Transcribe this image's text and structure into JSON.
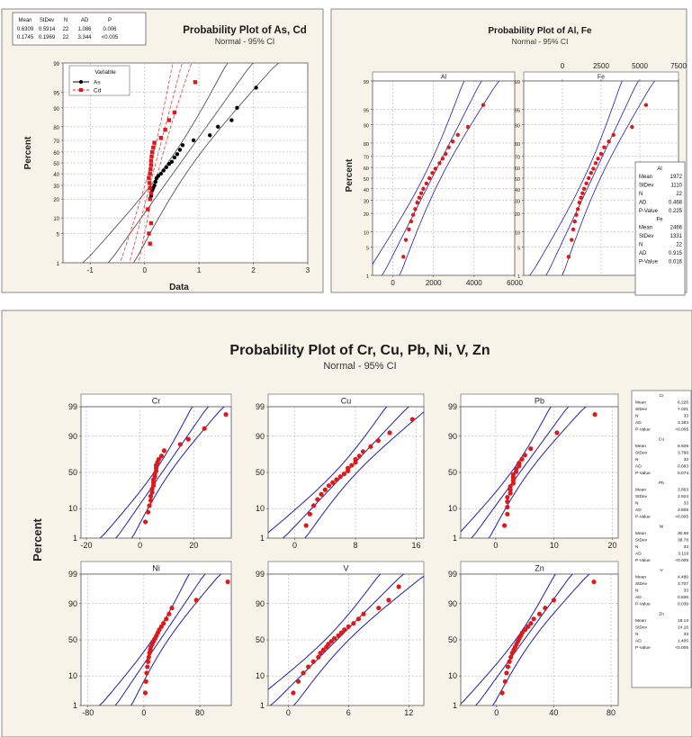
{
  "figure1": {
    "title": "Probability Plot of As, Cd",
    "subtitle": "Normal - 95% CI",
    "xlabel": "Data",
    "ylabel": "Percent",
    "legend_title": "Variable",
    "stats_header": [
      "Mean",
      "StDev",
      "N",
      "AD",
      "P"
    ],
    "stats_rows": [
      [
        "0.6309",
        "0.5914",
        "22",
        "1.086",
        "0.006"
      ],
      [
        "0.1745",
        "0.1969",
        "22",
        "3.344",
        "<0.005"
      ]
    ],
    "x_ticks": [
      "-1",
      "0",
      "1",
      "2",
      "3"
    ],
    "y_ticks": [
      "1",
      "5",
      "10",
      "20",
      "30",
      "40",
      "50",
      "60",
      "70",
      "80",
      "90",
      "95",
      "99"
    ]
  },
  "figure2": {
    "title": "Probability Plot of Al, Fe",
    "subtitle": "Normal - 95% CI",
    "ylabel": "Percent",
    "panel_labels": [
      "Al",
      "Fe"
    ],
    "bottom_ticks": [
      "0",
      "2000",
      "4000",
      "6000"
    ],
    "top_ticks": [
      "0",
      "2500",
      "5000",
      "7500"
    ],
    "y_ticks": [
      "1",
      "5",
      "10",
      "20",
      "30",
      "40",
      "50",
      "60",
      "70",
      "80",
      "90",
      "95",
      "99"
    ],
    "stats": [
      {
        "name": "Al",
        "rows": [
          [
            "Mean",
            "1972"
          ],
          [
            "StDev",
            "1110"
          ],
          [
            "N",
            "22"
          ],
          [
            "AD",
            "0.468"
          ],
          [
            "P-Value",
            "0.225"
          ]
        ]
      },
      {
        "name": "Fe",
        "rows": [
          [
            "Mean",
            "2466"
          ],
          [
            "StDev",
            "1331"
          ],
          [
            "N",
            "22"
          ],
          [
            "AD",
            "0.915"
          ],
          [
            "P-Value",
            "0.016"
          ]
        ]
      }
    ]
  },
  "figure3": {
    "title": "Probability Plot of Cr, Cu, Pb, Ni, V, Zn",
    "subtitle": "Normal - 95% CI",
    "ylabel": "Percent",
    "y_ticks": [
      "1",
      "10",
      "50",
      "90",
      "99"
    ],
    "panels": [
      {
        "name": "Cr",
        "ticks": [
          "-20",
          "0",
          "20"
        ]
      },
      {
        "name": "Cu",
        "ticks": [
          "0",
          "8",
          "16"
        ]
      },
      {
        "name": "Pb",
        "ticks": [
          "0",
          "10",
          "20"
        ]
      },
      {
        "name": "Ni",
        "ticks": [
          "-80",
          "0",
          "80"
        ]
      },
      {
        "name": "V",
        "ticks": [
          "0",
          "6",
          "12"
        ]
      },
      {
        "name": "Zn",
        "ticks": [
          "0",
          "40",
          "80"
        ]
      }
    ],
    "stats": [
      {
        "name": "Cr",
        "rows": [
          [
            "Mean",
            "6.226"
          ],
          [
            "StDev",
            "7.021"
          ],
          [
            "N",
            "33"
          ],
          [
            "AD",
            "3.383"
          ],
          [
            "P-Value",
            "<0.005"
          ]
        ]
      },
      {
        "name": "Cu",
        "rows": [
          [
            "Mean",
            "6.929"
          ],
          [
            "StDev",
            "3.786"
          ],
          [
            "N",
            "33"
          ],
          [
            "AD",
            "0.683"
          ],
          [
            "P-Value",
            "0.074"
          ]
        ]
      },
      {
        "name": "Pb",
        "rows": [
          [
            "Mean",
            "3.863"
          ],
          [
            "StDev",
            "2.924"
          ],
          [
            "N",
            "33"
          ],
          [
            "AD",
            "3.808"
          ],
          [
            "P-Value",
            "<0.005"
          ]
        ]
      },
      {
        "name": "Ni",
        "rows": [
          [
            "Mean",
            "30.98"
          ],
          [
            "StDev",
            "38.78"
          ],
          [
            "N",
            "33"
          ],
          [
            "AD",
            "3.119"
          ],
          [
            "P-Value",
            "<0.005"
          ]
        ]
      },
      {
        "name": "V",
        "rows": [
          [
            "Mean",
            "4.480"
          ],
          [
            "StDev",
            "3.707"
          ],
          [
            "N",
            "33"
          ],
          [
            "AD",
            "0.836"
          ],
          [
            "P-Value",
            "0.039"
          ]
        ]
      },
      {
        "name": "Zn",
        "rows": [
          [
            "Mean",
            "18.13"
          ],
          [
            "StDev",
            "14.16"
          ],
          [
            "N",
            "33"
          ],
          [
            "AD",
            "1.405"
          ],
          [
            "P-Value",
            "<0.005"
          ]
        ]
      }
    ]
  },
  "colors": {
    "background": "#f8f3e9",
    "plot_bg": "#ffffff",
    "series_black": "#000000",
    "series_red": "#e01818",
    "ci_line_blue": "#1f1fb0",
    "ci_line_gray": "#555555",
    "ci_line_red_dashed": "#e04040",
    "grid": "#a0a0a0"
  },
  "chart_data": [
    {
      "type": "scatter",
      "title": "Probability Plot of As, Cd",
      "subtitle": "Normal - 95% CI",
      "xlabel": "Data",
      "ylabel": "Percent",
      "xlim": [
        -1.5,
        3
      ],
      "y_scale": "normal-probability",
      "ylim": [
        1,
        99
      ],
      "grid": true,
      "legend": "top-left",
      "series": [
        {
          "name": "As",
          "color": "#000000",
          "marker": "circle",
          "x": [
            0.12,
            0.14,
            0.16,
            0.18,
            0.2,
            0.22,
            0.25,
            0.3,
            0.35,
            0.4,
            0.45,
            0.5,
            0.55,
            0.6,
            0.65,
            0.7,
            0.9,
            1.2,
            1.35,
            1.6,
            1.7,
            2.05
          ],
          "y": [
            22,
            26,
            28,
            30,
            33,
            36,
            38,
            40,
            43,
            46,
            49,
            51,
            55,
            58,
            62,
            66,
            70,
            74,
            80,
            84,
            90,
            96
          ]
        },
        {
          "name": "Cd",
          "color": "#e01818",
          "marker": "square",
          "x": [
            0.1,
            0.08,
            0.12,
            0.06,
            0.1,
            0.12,
            0.1,
            0.09,
            0.08,
            0.1,
            0.11,
            0.12,
            0.12,
            0.13,
            0.14,
            0.16,
            0.18,
            0.3,
            0.38,
            0.45,
            0.55,
            0.93
          ],
          "y": [
            3,
            5,
            8,
            14,
            20,
            24,
            28,
            32,
            36,
            40,
            44,
            48,
            52,
            56,
            60,
            64,
            68,
            72,
            78,
            84,
            88,
            97
          ]
        }
      ]
    },
    {
      "type": "scatter",
      "title": "Probability Plot of Al, Fe",
      "subtitle": "Normal - 95% CI",
      "ylabel": "Percent",
      "y_scale": "normal-probability",
      "panels": [
        {
          "name": "Al",
          "xlim": [
            -1000,
            6000
          ],
          "x": [
            520,
            640,
            790,
            900,
            1000,
            1100,
            1200,
            1300,
            1400,
            1500,
            1650,
            1800,
            1950,
            2100,
            2300,
            2450,
            2600,
            2750,
            2950,
            3200,
            3700,
            4450
          ],
          "y": [
            3,
            7,
            11,
            15,
            19,
            23,
            28,
            32,
            36,
            40,
            45,
            50,
            55,
            59,
            64,
            68,
            72,
            77,
            81,
            85,
            89,
            96
          ]
        },
        {
          "name": "Fe",
          "xlim": [
            -2500,
            7500
          ],
          "x": [
            400,
            600,
            700,
            800,
            900,
            1000,
            1100,
            1200,
            1300,
            1400,
            1550,
            1700,
            1850,
            2000,
            2150,
            2300,
            2500,
            2700,
            3000,
            3300,
            4500,
            5400
          ],
          "y": [
            3,
            7,
            11,
            15,
            19,
            23,
            28,
            32,
            36,
            40,
            45,
            50,
            55,
            59,
            64,
            68,
            72,
            77,
            81,
            85,
            89,
            96
          ]
        }
      ],
      "grid": true
    },
    {
      "type": "scatter",
      "title": "Probability Plot of Cr, Cu, Pb, Ni, V, Zn",
      "subtitle": "Normal - 95% CI",
      "ylabel": "Percent",
      "y_scale": "normal-probability",
      "grid": true,
      "panels": [
        {
          "name": "Cr",
          "xlim": [
            -22,
            34
          ],
          "x": [
            2,
            3,
            3.5,
            4,
            4,
            4.5,
            4.5,
            5,
            5,
            5,
            5.5,
            5.5,
            6,
            6,
            6,
            6.5,
            7,
            8,
            9,
            15,
            18,
            24,
            32
          ],
          "y": [
            4,
            8,
            12,
            16,
            20,
            24,
            28,
            32,
            36,
            40,
            44,
            48,
            52,
            56,
            60,
            64,
            68,
            72,
            78,
            84,
            88,
            94,
            98
          ]
        },
        {
          "name": "Cu",
          "xlim": [
            -3.5,
            17
          ],
          "x": [
            1.5,
            2,
            2.5,
            3,
            3.5,
            4,
            4.5,
            5,
            5.5,
            6,
            6.5,
            7,
            7,
            7.5,
            8,
            8,
            8.5,
            9,
            10,
            11,
            12.5,
            15.5
          ],
          "y": [
            3,
            7,
            12,
            17,
            22,
            27,
            32,
            36,
            40,
            44,
            48,
            52,
            56,
            60,
            64,
            68,
            72,
            77,
            82,
            87,
            92,
            97
          ]
        },
        {
          "name": "Pb",
          "xlim": [
            -6,
            21
          ],
          "x": [
            1.5,
            2,
            2,
            2,
            2,
            2.5,
            2.5,
            2.5,
            3,
            3,
            3,
            3,
            3.5,
            3.5,
            4,
            4,
            4.5,
            5,
            6,
            10.5,
            17
          ],
          "y": [
            3,
            7,
            11,
            15,
            19,
            23,
            27,
            31,
            35,
            39,
            43,
            47,
            51,
            55,
            59,
            63,
            68,
            73,
            80,
            92,
            98
          ]
        },
        {
          "name": "Ni",
          "xlim": [
            -90,
            125
          ],
          "x": [
            2,
            3,
            4,
            5,
            6,
            7,
            8,
            9,
            10,
            12,
            14,
            16,
            18,
            20,
            22,
            25,
            28,
            32,
            36,
            40,
            75,
            120
          ],
          "y": [
            3,
            7,
            12,
            17,
            22,
            27,
            32,
            36,
            40,
            44,
            48,
            52,
            56,
            60,
            64,
            68,
            72,
            77,
            82,
            87,
            92,
            98
          ]
        },
        {
          "name": "V",
          "xlim": [
            -2,
            13.5
          ],
          "x": [
            0.5,
            1,
            1.5,
            2,
            2.5,
            3,
            3.2,
            3.5,
            3.8,
            4,
            4.3,
            4.6,
            5,
            5.3,
            5.6,
            6,
            6.5,
            7,
            7.5,
            9,
            10,
            11
          ],
          "y": [
            3,
            7,
            12,
            17,
            22,
            27,
            32,
            36,
            40,
            44,
            48,
            52,
            56,
            60,
            64,
            68,
            72,
            77,
            82,
            87,
            92,
            97
          ]
        },
        {
          "name": "Zn",
          "xlim": [
            -25,
            85
          ],
          "x": [
            4,
            6,
            7,
            8,
            9,
            10,
            11,
            12,
            13,
            14,
            15,
            16,
            17,
            18,
            20,
            22,
            24,
            26,
            30,
            34,
            40,
            68
          ],
          "y": [
            3,
            7,
            12,
            17,
            22,
            27,
            32,
            36,
            40,
            44,
            48,
            52,
            56,
            60,
            64,
            68,
            72,
            77,
            82,
            87,
            92,
            98
          ]
        }
      ]
    }
  ]
}
